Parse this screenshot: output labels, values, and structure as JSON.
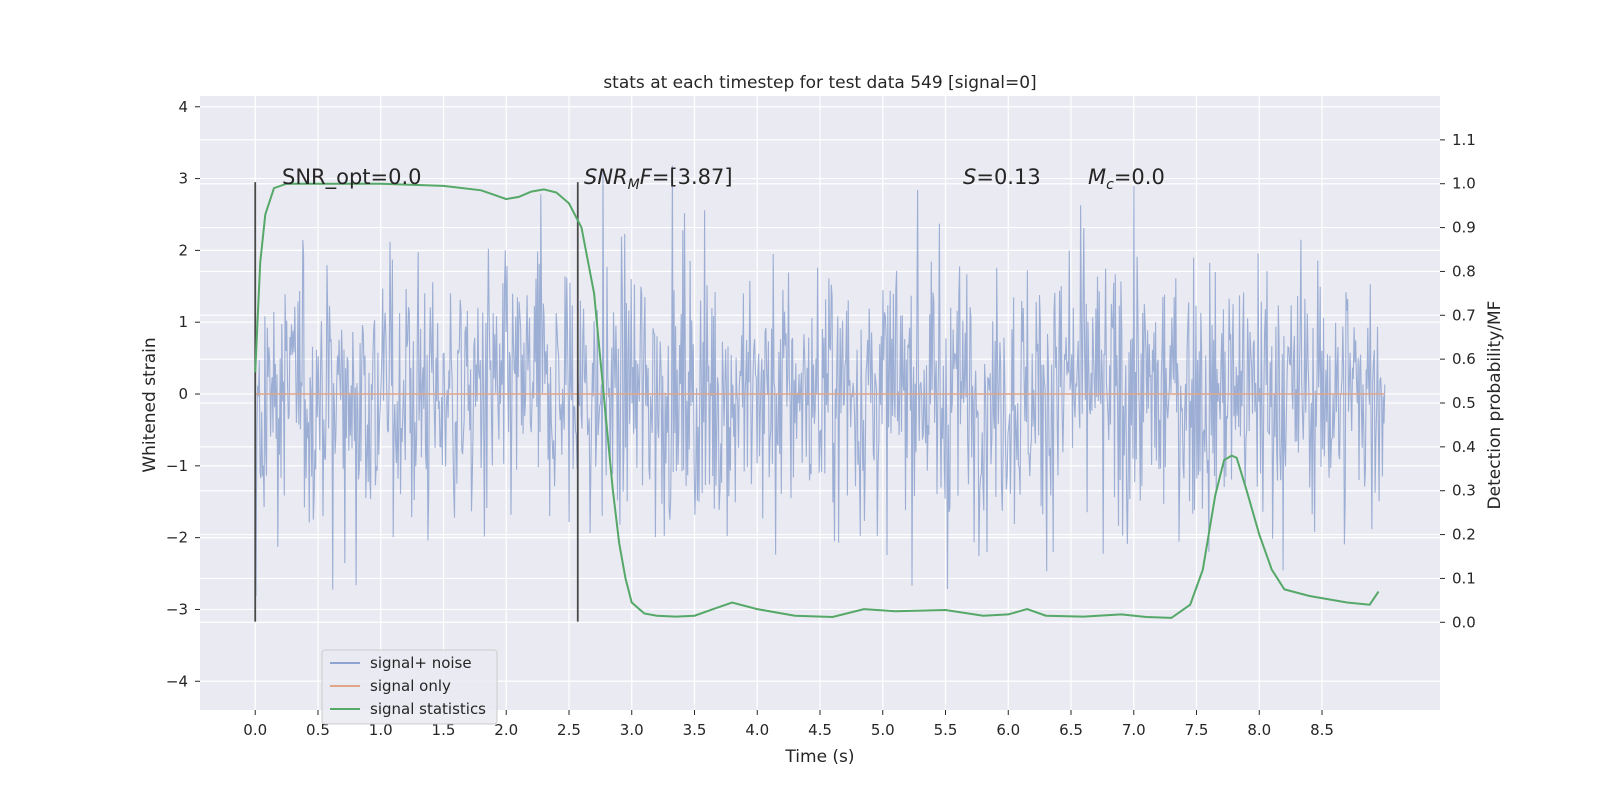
{
  "chart_data": {
    "type": "line",
    "title": "stats at each timestep for test data 549 [signal=0]",
    "xlabel": "Time (s)",
    "ylabel": "Whitened strain",
    "ylabel_right": "Detection probability/MF",
    "xlim": [
      -0.44,
      9.44
    ],
    "ylim": [
      -4.4,
      4.15
    ],
    "ylim_right": [
      -0.2,
      1.2
    ],
    "xticks": [
      "0.0",
      "0.5",
      "1.0",
      "1.5",
      "2.0",
      "2.5",
      "3.0",
      "3.5",
      "4.0",
      "4.5",
      "5.0",
      "5.5",
      "6.0",
      "6.5",
      "7.0",
      "7.5",
      "8.0",
      "8.5"
    ],
    "yticks_left": [
      "4",
      "3",
      "2",
      "1",
      "0",
      "−1",
      "−2",
      "−3",
      "−4"
    ],
    "yticks_right": [
      "1.1",
      "1.0",
      "0.9",
      "0.8",
      "0.7",
      "0.6",
      "0.5",
      "0.4",
      "0.3",
      "0.2",
      "0.1",
      "0.0"
    ],
    "grid": true,
    "legend_position": "lower-left",
    "annotations": {
      "snr_opt": "SNR_opt=0.0",
      "snr_mf_italic": "SNR",
      "snr_mf_sub": "M",
      "snr_mf_tail": "F",
      "snr_mf_value": "=[3.87]",
      "s_symbol": "S",
      "s_value": "=0.13",
      "mc_symbol": "M",
      "mc_sub": "c",
      "mc_value": "=0.0"
    },
    "markers": [
      0.0,
      2.57
    ],
    "series": [
      {
        "name": "signal+ noise",
        "color": "#8ea3cf",
        "axis": "left",
        "kind": "noise",
        "x_range": [
          0.0,
          9.0
        ],
        "envelope": [
          -2.5,
          2.5
        ]
      },
      {
        "name": "signal only",
        "color": "#e0a589",
        "axis": "left",
        "x": [
          0.0,
          9.0
        ],
        "y": [
          0.0,
          0.0
        ]
      },
      {
        "name": "signal statistics",
        "color": "#55a868",
        "axis": "right",
        "x": [
          0.0,
          0.04,
          0.08,
          0.15,
          0.25,
          0.4,
          0.6,
          1.0,
          1.5,
          1.8,
          1.9,
          2.0,
          2.1,
          2.2,
          2.3,
          2.4,
          2.5,
          2.6,
          2.7,
          2.8,
          2.85,
          2.9,
          2.95,
          3.0,
          3.1,
          3.2,
          3.35,
          3.5,
          3.65,
          3.8,
          4.0,
          4.3,
          4.6,
          4.85,
          5.1,
          5.5,
          5.8,
          6.0,
          6.15,
          6.3,
          6.6,
          6.9,
          7.1,
          7.3,
          7.45,
          7.55,
          7.65,
          7.72,
          7.78,
          7.82,
          7.9,
          8.0,
          8.1,
          8.2,
          8.4,
          8.7,
          8.88,
          8.95
        ],
        "y": [
          0.57,
          0.82,
          0.93,
          0.99,
          1.0,
          1.0,
          1.0,
          1.0,
          0.995,
          0.985,
          0.975,
          0.965,
          0.97,
          0.982,
          0.987,
          0.98,
          0.955,
          0.9,
          0.75,
          0.45,
          0.3,
          0.18,
          0.1,
          0.045,
          0.02,
          0.015,
          0.013,
          0.015,
          0.03,
          0.045,
          0.03,
          0.015,
          0.012,
          0.03,
          0.025,
          0.028,
          0.015,
          0.018,
          0.03,
          0.015,
          0.013,
          0.018,
          0.012,
          0.01,
          0.04,
          0.12,
          0.29,
          0.37,
          0.38,
          0.375,
          0.3,
          0.2,
          0.12,
          0.075,
          0.06,
          0.045,
          0.04,
          0.07
        ]
      }
    ]
  }
}
